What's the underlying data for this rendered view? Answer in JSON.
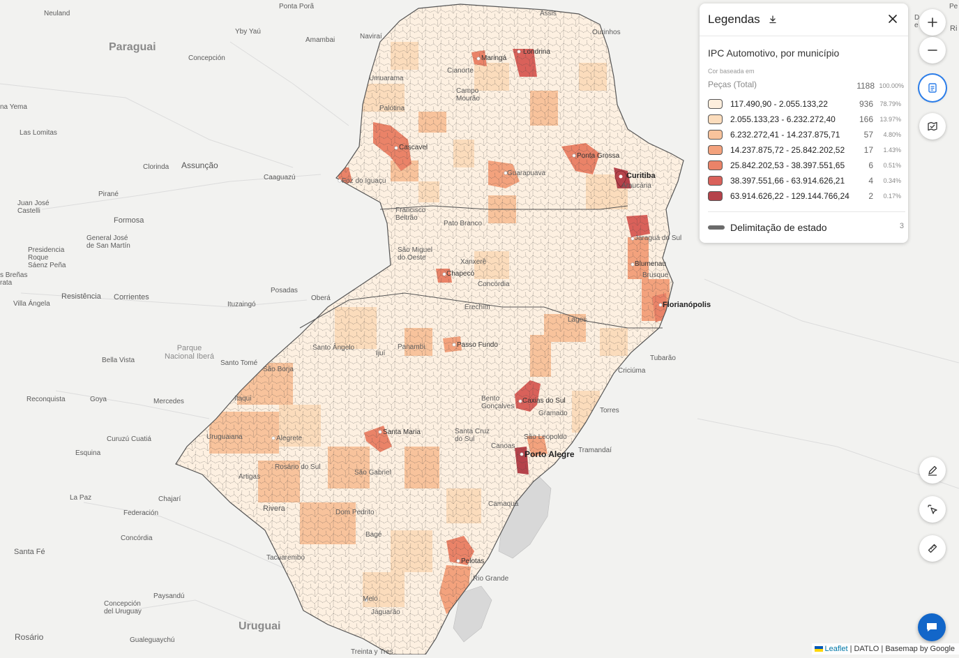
{
  "legend": {
    "title": "Legendas",
    "layer_title": "IPC Automotivo, por município",
    "basis_label": "Cor baseada em",
    "metric_label": "Peças (Total)",
    "total_count": "1188",
    "total_pct": "100.00%",
    "classes": [
      {
        "range": "117.490,90 - 2.055.133,22",
        "count": "936",
        "pct": "78.79%",
        "color": "#fdeedd"
      },
      {
        "range": "2.055.133,23 - 6.232.272,40",
        "count": "166",
        "pct": "13.97%",
        "color": "#fbdcbc"
      },
      {
        "range": "6.232.272,41 - 14.237.875,71",
        "count": "57",
        "pct": "4.80%",
        "color": "#f8c39c"
      },
      {
        "range": "14.237.875,72 - 25.842.202,52",
        "count": "17",
        "pct": "1.43%",
        "color": "#f3a27d"
      },
      {
        "range": "25.842.202,53 - 38.397.551,65",
        "count": "6",
        "pct": "0.51%",
        "color": "#ea8368"
      },
      {
        "range": "38.397.551,66 - 63.914.626,21",
        "count": "4",
        "pct": "0.34%",
        "color": "#d9615a"
      },
      {
        "range": "63.914.626,22 - 129.144.766,24",
        "count": "2",
        "pct": "0.17%",
        "color": "#b5424a"
      }
    ],
    "boundary_label": "Delimitação de estado",
    "boundary_count": "3"
  },
  "attribution": {
    "leaflet": "Leaflet",
    "rest": " | DATLO | Basemap by Google"
  },
  "controls": [
    "zoom-in-icon",
    "zoom-out-icon",
    "legend-icon",
    "layers-icon",
    "draw-icon",
    "select-icon",
    "ruler-icon",
    "chat-icon"
  ],
  "country_labels": {
    "paraguai": "Paraguai",
    "uruguai": "Uruguai"
  },
  "places": {
    "neuland": "Neuland",
    "ponta_pora": "Ponta Porã",
    "assis": "Assis",
    "ourinhos": "Ourinhos",
    "by_yau": "Yby Yaú",
    "amambai": "Amambai",
    "navirai": "Naviraí",
    "concepcion_py": "Concepción",
    "maringa": "Maringá",
    "londrina": "Londrina",
    "cianorte": "Cianorte",
    "umuarama": "Umuarama",
    "campo_mourao": "Campo\nMourão",
    "palotina": "Palotina",
    "cascavel": "Cascavel",
    "ponta_grossa": "Ponta Grossa",
    "guarapuava": "Guarapuava",
    "curitiba": "Curitiba",
    "araucaria": "Araucária",
    "foz": "Foz do Iguaçu",
    "francisco_beltrao": "Francisco\nBeltrão",
    "pato_branco": "Pato Branco",
    "jaragua": "Jaraguá do Sul",
    "blumenau": "Blumenau",
    "brusque": "Brusque",
    "florianopolis": "Florianópolis",
    "sao_miguel": "São Miguel\ndo Oeste",
    "xanxere": "Xanxerê",
    "chapeco": "Chapecó",
    "concordia": "Concórdia",
    "erechim": "Erechim",
    "lages": "Lages",
    "tubarao": "Tubarão",
    "criciuma": "Criciúma",
    "santo_angelo": "Santo Ângelo",
    "ijui": "Ijuí",
    "passo_fundo": "Passo Fundo",
    "panambi": "Panambi",
    "sao_borja": "São Borja",
    "itaqui": "Itaqui",
    "caxias": "Caxias do Sul",
    "gramado": "Gramado",
    "torres": "Torres",
    "bento": "Bento\nGonçalves",
    "uruguaiana": "Uruguaiana",
    "alegrete": "Alegrete",
    "santa_maria": "Santa Maria",
    "santa_cruz": "Santa Cruz\ndo Sul",
    "canoas": "Canoas",
    "sao_leopoldo": "São Leopoldo",
    "porto_alegre": "Porto Alegre",
    "tramandai": "Tramandaí",
    "rosario_do_sul": "Rosário do Sul",
    "sao_gabriel": "São Gabriel",
    "artigas": "Artigas",
    "rivera": "Rivera",
    "dom_pedrito": "Dom Pedrito",
    "camaqua": "Camaquã",
    "bage": "Bagé",
    "pelotas": "Pelotas",
    "rio_grande": "Rio Grande",
    "melo": "Melo",
    "jaguarao": "Jaguarão",
    "treinta": "Treinta y Tres",
    "tacuarembo": "Tacuarembó",
    "asuncion": "Assunção",
    "clorinda": "Clorinda",
    "caaguazu": "Caaguazú",
    "pirane": "Pirané",
    "formosa": "Formosa",
    "juan_jose": "Juan José\nCastelli",
    "general_jose": "General José\nde San Martín",
    "presidencia": "Presidencia\nRoque\nSáenz Peña",
    "resistencia": "Resistência",
    "corrientes": "Corrientes",
    "villa_angela": "Villa Ángela",
    "posadas": "Posadas",
    "obera": "Oberá",
    "ituzaingo": "Ituzaingó",
    "parque": "Parque\nNacional Iberá",
    "santo_tome": "Santo Tomé",
    "bella_vista": "Bella Vista",
    "reconquista": "Reconquista",
    "goya": "Goya",
    "mercedes": "Mercedes",
    "curuzu": "Curuzú Cuatiá",
    "esquina": "Esquina",
    "la_paz": "La Paz",
    "chajari": "Chajarí",
    "federacion": "Federación",
    "concordia_ar": "Concórdia",
    "santa_fe": "Santa Fé",
    "paysandu": "Paysandú",
    "concepcion_uy": "Concepción\ndel Uruguay",
    "rosario": "Rosário",
    "gualeguaychu": "Gualeguaychú",
    "la_yema": "na Yema",
    "las_lomitas": "Las Lomitas",
    "las_brenas": "s Breñas\nrata",
    "pe": "Pe",
    "ri": "Ri",
    "de": "D\ne"
  }
}
